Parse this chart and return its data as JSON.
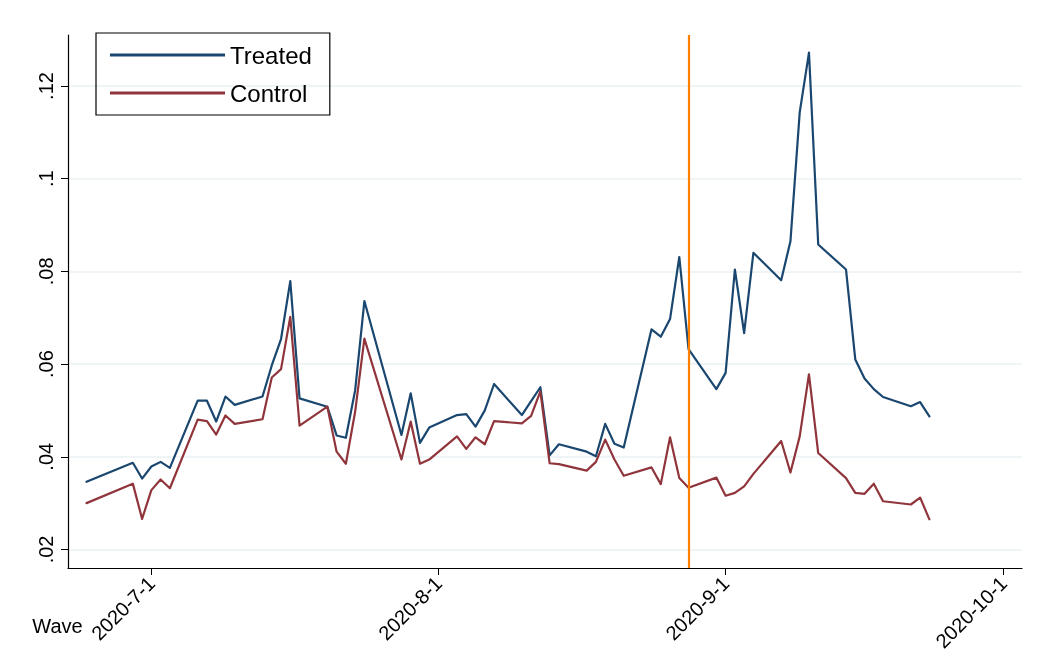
{
  "chart_data": {
    "type": "line",
    "xlabel": "Wave",
    "x": [
      "2020-06-24",
      "2020-06-29",
      "2020-06-30",
      "2020-07-01",
      "2020-07-02",
      "2020-07-03",
      "2020-07-06",
      "2020-07-07",
      "2020-07-08",
      "2020-07-09",
      "2020-07-10",
      "2020-07-13",
      "2020-07-14",
      "2020-07-15",
      "2020-07-16",
      "2020-07-17",
      "2020-07-20",
      "2020-07-21",
      "2020-07-22",
      "2020-07-23",
      "2020-07-24",
      "2020-07-28",
      "2020-07-29",
      "2020-07-30",
      "2020-07-31",
      "2020-08-03",
      "2020-08-04",
      "2020-08-05",
      "2020-08-06",
      "2020-08-07",
      "2020-08-10",
      "2020-08-11",
      "2020-08-12",
      "2020-08-13",
      "2020-08-14",
      "2020-08-17",
      "2020-08-18",
      "2020-08-19",
      "2020-08-20",
      "2020-08-21",
      "2020-08-24",
      "2020-08-25",
      "2020-08-26",
      "2020-08-27",
      "2020-08-28",
      "2020-08-31",
      "2020-09-01",
      "2020-09-02",
      "2020-09-03",
      "2020-09-04",
      "2020-09-07",
      "2020-09-08",
      "2020-09-09",
      "2020-09-10",
      "2020-09-11",
      "2020-09-14",
      "2020-09-15",
      "2020-09-16",
      "2020-09-17",
      "2020-09-18",
      "2020-09-21",
      "2020-09-22",
      "2020-09-23"
    ],
    "series": [
      {
        "name": "Treated",
        "color": "#1a476f",
        "values": [
          0.0346,
          0.0387,
          0.0353,
          0.0379,
          0.0389,
          0.0376,
          0.0521,
          0.0521,
          0.0476,
          0.053,
          0.0512,
          0.053,
          0.0597,
          0.0654,
          0.0779,
          0.0526,
          0.0508,
          0.0446,
          0.0441,
          0.0543,
          0.0736,
          0.0447,
          0.0537,
          0.043,
          0.0463,
          0.049,
          0.0492,
          0.0465,
          0.05,
          0.0557,
          0.049,
          0.052,
          0.055,
          0.0403,
          0.0427,
          0.0411,
          0.0401,
          0.0471,
          0.0428,
          0.042,
          0.0675,
          0.0659,
          0.0697,
          0.0831,
          0.0632,
          0.0546,
          0.0581,
          0.0804,
          0.0667,
          0.084,
          0.0781,
          0.0865,
          0.1143,
          0.1272,
          0.0858,
          0.0804,
          0.061,
          0.0569,
          0.0546,
          0.0529,
          0.0509,
          0.0518,
          0.0487
        ]
      },
      {
        "name": "Control",
        "color": "#90353b",
        "values": [
          0.03,
          0.0342,
          0.0266,
          0.0328,
          0.0351,
          0.0332,
          0.048,
          0.0477,
          0.0448,
          0.0489,
          0.0471,
          0.0481,
          0.0571,
          0.0589,
          0.0702,
          0.0467,
          0.0508,
          0.0411,
          0.0385,
          0.0497,
          0.0655,
          0.0394,
          0.0476,
          0.0385,
          0.0394,
          0.0444,
          0.0417,
          0.0442,
          0.0427,
          0.0477,
          0.0472,
          0.0488,
          0.0541,
          0.0386,
          0.0384,
          0.037,
          0.0389,
          0.0437,
          0.0394,
          0.0359,
          0.0377,
          0.0341,
          0.0442,
          0.0354,
          0.0333,
          0.0355,
          0.0316,
          0.0322,
          0.0336,
          0.0363,
          0.0434,
          0.0366,
          0.0444,
          0.0578,
          0.0408,
          0.0354,
          0.0322,
          0.032,
          0.0342,
          0.0304,
          0.0297,
          0.0312,
          0.0265
        ]
      }
    ],
    "xlim": [
      "2020-06-22",
      "2020-10-03"
    ],
    "xticks": [
      {
        "value": "2020-07-01",
        "label": "2020-7-1"
      },
      {
        "value": "2020-08-01",
        "label": "2020-8-1"
      },
      {
        "value": "2020-09-01",
        "label": "2020-9-1"
      },
      {
        "value": "2020-10-01",
        "label": "2020-10-1"
      }
    ],
    "ylim": [
      0.016,
      0.131
    ],
    "yticks": [
      {
        "value": 0.02,
        "label": ".02"
      },
      {
        "value": 0.04,
        "label": ".04"
      },
      {
        "value": 0.06,
        "label": ".06"
      },
      {
        "value": 0.08,
        "label": ".08"
      },
      {
        "value": 0.1,
        "label": ".1"
      },
      {
        "value": 0.12,
        "label": ".12"
      }
    ],
    "ref_lines": [
      {
        "axis": "x",
        "value": "2020-08-28",
        "color": "#ff8000"
      }
    ],
    "grid": "y",
    "legend": "top left",
    "marker": "none",
    "line_style": "solid"
  }
}
